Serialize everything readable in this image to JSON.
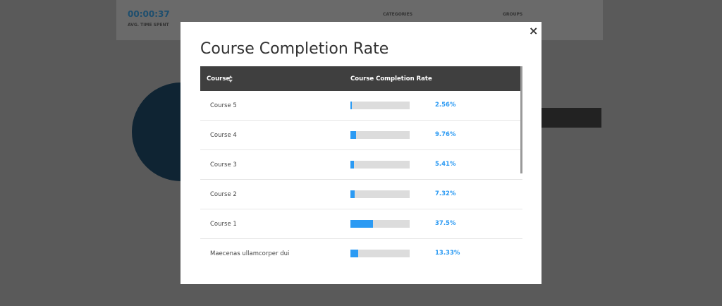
{
  "background": {
    "timer": "00:00:37",
    "timer_caption": "AVG. TIME SPENT",
    "categories": "CATEGORIES",
    "groups": "GROUPS"
  },
  "modal": {
    "title": "Course Completion Rate",
    "close": "×"
  },
  "table": {
    "columns": [
      "Course",
      "Course Completion Rate"
    ],
    "rows": [
      {
        "course": "Course 5",
        "rate": 2.56,
        "rate_label": "2.56%"
      },
      {
        "course": "Course 4",
        "rate": 9.76,
        "rate_label": "9.76%"
      },
      {
        "course": "Course 3",
        "rate": 5.41,
        "rate_label": "5.41%"
      },
      {
        "course": "Course 2",
        "rate": 7.32,
        "rate_label": "7.32%"
      },
      {
        "course": "Course 1",
        "rate": 37.5,
        "rate_label": "37.5%"
      },
      {
        "course": "Maecenas ullamcorper dui",
        "rate": 13.33,
        "rate_label": "13.33%"
      }
    ]
  }
}
